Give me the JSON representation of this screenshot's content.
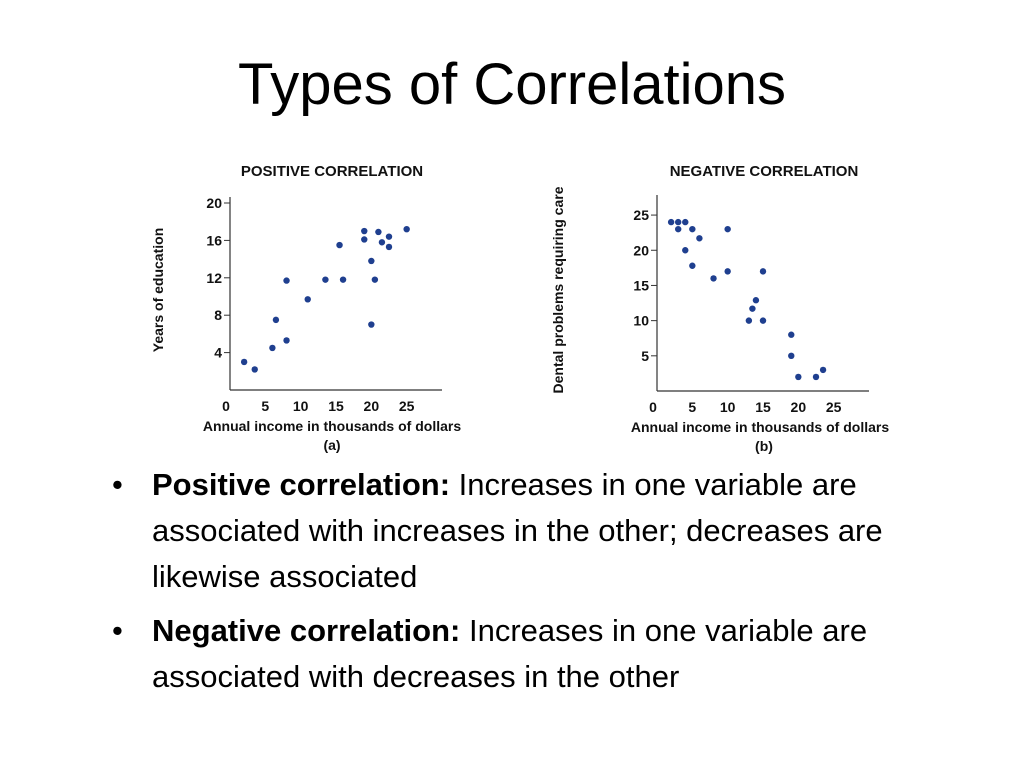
{
  "slide": {
    "title": "Types of Correlations",
    "bullets": [
      {
        "marker": "•",
        "term": "Positive correlation:",
        "text": " Increases in one variable are associated with increases in the other; decreases are likewise associated"
      },
      {
        "marker": "•",
        "term": "Negative correlation:",
        "text": " Increases in one variable are associated with decreases in the other"
      }
    ]
  },
  "colors": {
    "point": "#1f3f8f",
    "axis": "#333333"
  },
  "chart_data": [
    {
      "type": "scatter",
      "title": "POSITIVE CORRELATION",
      "xlabel": "Annual income in thousands of dollars",
      "ylabel": "Years of education",
      "sublabel": "(a)",
      "xlim": [
        0,
        30
      ],
      "ylim": [
        0,
        20
      ],
      "xticks": [
        "0",
        "5",
        "10",
        "15",
        "20",
        "25"
      ],
      "yticks": [
        "4",
        "8",
        "12",
        "16",
        "20"
      ],
      "grid": false,
      "points": [
        {
          "x": 2,
          "y": 3
        },
        {
          "x": 3.5,
          "y": 2.2
        },
        {
          "x": 6,
          "y": 4.5
        },
        {
          "x": 6.5,
          "y": 7.5
        },
        {
          "x": 8,
          "y": 5.3
        },
        {
          "x": 8,
          "y": 11.7
        },
        {
          "x": 11,
          "y": 9.7
        },
        {
          "x": 13.5,
          "y": 11.8
        },
        {
          "x": 15.5,
          "y": 15.5
        },
        {
          "x": 16,
          "y": 11.8
        },
        {
          "x": 19,
          "y": 16.1
        },
        {
          "x": 19,
          "y": 17
        },
        {
          "x": 20,
          "y": 13.8
        },
        {
          "x": 20,
          "y": 7
        },
        {
          "x": 20.5,
          "y": 11.8
        },
        {
          "x": 21,
          "y": 16.9
        },
        {
          "x": 21.5,
          "y": 15.8
        },
        {
          "x": 22.5,
          "y": 15.3
        },
        {
          "x": 22.5,
          "y": 16.4
        },
        {
          "x": 25,
          "y": 17.2
        }
      ]
    },
    {
      "type": "scatter",
      "title": "NEGATIVE CORRELATION",
      "xlabel": "Annual income in thousands of dollars",
      "ylabel": "Dental problems requiring care",
      "sublabel": "(b)",
      "xlim": [
        0,
        30
      ],
      "ylim": [
        0,
        27
      ],
      "xticks": [
        "0",
        "5",
        "10",
        "15",
        "20",
        "25"
      ],
      "yticks": [
        "5",
        "10",
        "15",
        "20",
        "25"
      ],
      "grid": false,
      "points": [
        {
          "x": 2,
          "y": 24
        },
        {
          "x": 3,
          "y": 23
        },
        {
          "x": 3,
          "y": 24
        },
        {
          "x": 4,
          "y": 24
        },
        {
          "x": 4,
          "y": 20
        },
        {
          "x": 5,
          "y": 23
        },
        {
          "x": 5,
          "y": 17.8
        },
        {
          "x": 6,
          "y": 21.7
        },
        {
          "x": 8,
          "y": 16
        },
        {
          "x": 10,
          "y": 23
        },
        {
          "x": 10,
          "y": 17
        },
        {
          "x": 13,
          "y": 10
        },
        {
          "x": 13.5,
          "y": 11.7
        },
        {
          "x": 14,
          "y": 12.9
        },
        {
          "x": 15,
          "y": 17
        },
        {
          "x": 15,
          "y": 10
        },
        {
          "x": 19,
          "y": 8
        },
        {
          "x": 19,
          "y": 5
        },
        {
          "x": 20,
          "y": 2
        },
        {
          "x": 22.5,
          "y": 2
        },
        {
          "x": 23.5,
          "y": 3
        }
      ]
    }
  ]
}
